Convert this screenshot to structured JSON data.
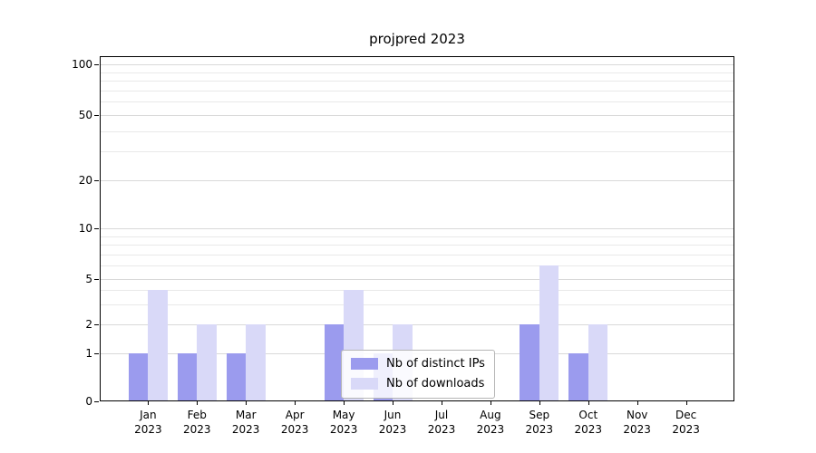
{
  "chart_data": {
    "type": "bar",
    "title": "projpred 2023",
    "categories": [
      "Jan 2023",
      "Feb 2023",
      "Mar 2023",
      "Apr 2023",
      "May 2023",
      "Jun 2023",
      "Jul 2023",
      "Aug 2023",
      "Sep 2023",
      "Oct 2023",
      "Nov 2023",
      "Dec 2023"
    ],
    "series": [
      {
        "name": "Nb of distinct IPs",
        "color": "#9b9bee",
        "values": [
          1,
          1,
          1,
          0,
          2,
          1,
          0,
          0,
          2,
          1,
          0,
          0
        ]
      },
      {
        "name": "Nb of downloads",
        "color": "#d9d9f8",
        "values": [
          4,
          2,
          2,
          0,
          4,
          2,
          0,
          0,
          6,
          2,
          0,
          0
        ]
      }
    ],
    "yscale": "symlog",
    "yticks": [
      0,
      1,
      2,
      5,
      10,
      20,
      50,
      100
    ],
    "minor_yticks": [
      3,
      4,
      6,
      7,
      8,
      9,
      30,
      40,
      60,
      70,
      80,
      90
    ],
    "ylim": [
      0,
      100
    ],
    "grid": true,
    "legend_position": "lower center"
  }
}
